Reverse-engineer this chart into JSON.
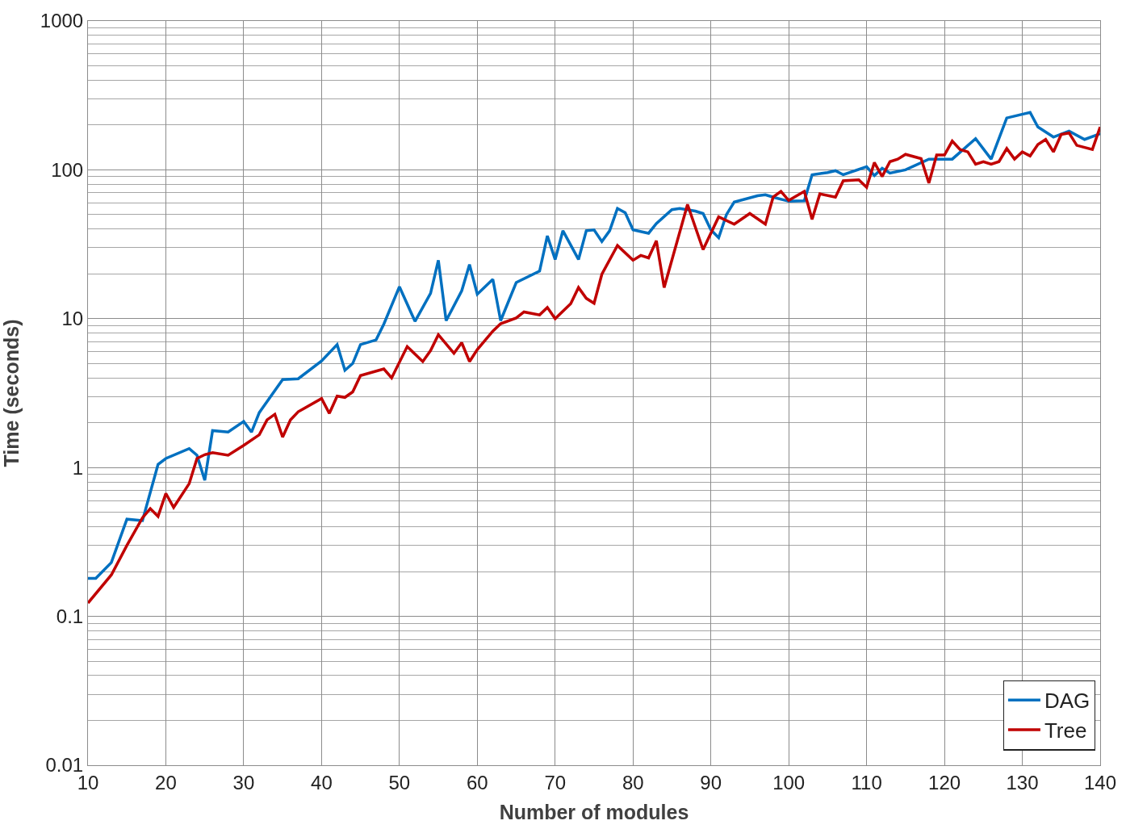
{
  "chart_data": {
    "type": "line",
    "xlabel": "Number of modules",
    "ylabel": "Time (seconds)",
    "log": "y",
    "grid": true,
    "legend": "bottom right",
    "marker": "none",
    "line_style": "solid",
    "xlim": [
      10,
      140
    ],
    "xticks": [
      10,
      20,
      30,
      40,
      50,
      60,
      70,
      80,
      90,
      100,
      110,
      120,
      130,
      140
    ],
    "ylim": [
      0.01,
      1000
    ],
    "yticks": [
      0.01,
      0.1,
      1,
      10,
      100,
      1000
    ],
    "series": [
      {
        "name": "DAG",
        "color": "#0070c0",
        "x": [
          10,
          11,
          13,
          15,
          17,
          19,
          20,
          23,
          24,
          25,
          26,
          28,
          30,
          31,
          32,
          35,
          37,
          40,
          42,
          43,
          44,
          45,
          47,
          48,
          50,
          52,
          54,
          55,
          56,
          58,
          59,
          60,
          62,
          63,
          65,
          68,
          69,
          70,
          71,
          73,
          74,
          75,
          76,
          77,
          78,
          79,
          80,
          82,
          83,
          85,
          86,
          88,
          89,
          90,
          91,
          92,
          93,
          96,
          97,
          98,
          100,
          102,
          103,
          105,
          106,
          107,
          110,
          111,
          112,
          113,
          115,
          118,
          121,
          124,
          126,
          128,
          131,
          132,
          134,
          136,
          138,
          140
        ],
        "values": [
          0.18,
          0.18,
          0.23,
          0.45,
          0.44,
          1.05,
          1.15,
          1.34,
          1.21,
          0.82,
          1.77,
          1.73,
          2.04,
          1.73,
          2.34,
          3.9,
          3.95,
          5.2,
          6.7,
          4.5,
          5.0,
          6.7,
          7.2,
          9.2,
          16.4,
          9.6,
          14.8,
          24.7,
          9.7,
          15.4,
          23.1,
          14.6,
          18.4,
          9.7,
          17.5,
          20.9,
          36,
          25,
          39,
          25,
          39,
          39.5,
          33,
          39,
          55,
          51.5,
          39.5,
          37.5,
          43.6,
          54,
          55,
          52.8,
          50.9,
          39.5,
          35,
          50,
          60.8,
          67,
          68,
          65.5,
          61.5,
          62,
          92.7,
          96,
          98.7,
          92.7,
          105,
          91.5,
          102.5,
          95,
          100,
          118,
          118,
          162,
          118,
          223,
          243,
          194,
          166,
          182,
          160,
          175
        ]
      },
      {
        "name": "Tree",
        "color": "#c00000",
        "x": [
          10,
          13,
          15,
          17,
          18,
          19,
          20,
          21,
          23,
          24,
          25,
          26,
          28,
          30,
          32,
          33,
          34,
          35,
          36,
          37,
          40,
          41,
          42,
          43,
          44,
          45,
          48,
          49,
          51,
          53,
          54,
          55,
          57,
          58,
          59,
          60,
          62,
          63,
          65,
          66,
          68,
          69,
          70,
          72,
          73,
          74,
          75,
          76,
          78,
          80,
          81,
          82,
          83,
          84,
          87,
          89,
          91,
          93,
          95,
          97,
          98,
          99,
          100,
          102,
          103,
          104,
          106,
          107,
          109,
          110,
          111,
          112,
          113,
          114,
          115,
          117,
          118,
          119,
          120,
          121,
          122,
          123,
          124,
          125,
          126,
          127,
          128,
          129,
          130,
          131,
          132,
          133,
          134,
          135,
          136,
          137,
          139,
          140
        ],
        "values": [
          0.123,
          0.19,
          0.3,
          0.46,
          0.53,
          0.47,
          0.67,
          0.54,
          0.78,
          1.15,
          1.22,
          1.26,
          1.21,
          1.41,
          1.66,
          2.09,
          2.28,
          1.6,
          2.09,
          2.37,
          2.91,
          2.31,
          3.02,
          2.96,
          3.22,
          4.15,
          4.6,
          4.0,
          6.5,
          5.15,
          6.1,
          7.8,
          5.85,
          6.9,
          5.15,
          6.2,
          8.25,
          9.25,
          10.1,
          11.1,
          10.6,
          11.9,
          10,
          12.6,
          16.2,
          13.7,
          12.7,
          19.9,
          31,
          24.7,
          26.6,
          25.6,
          33.4,
          16.2,
          58.5,
          29.1,
          48.3,
          43.1,
          50.9,
          43.1,
          65.6,
          71.7,
          62.3,
          71.7,
          46.5,
          69,
          65.6,
          84.5,
          85.6,
          76.4,
          112,
          90.3,
          113.5,
          118,
          127,
          119,
          81.6,
          125.7,
          125.7,
          156,
          137,
          132,
          109,
          113.5,
          109,
          113.5,
          139,
          118,
          132,
          124,
          148,
          160,
          132,
          173,
          177,
          146,
          137,
          194
        ]
      }
    ]
  }
}
